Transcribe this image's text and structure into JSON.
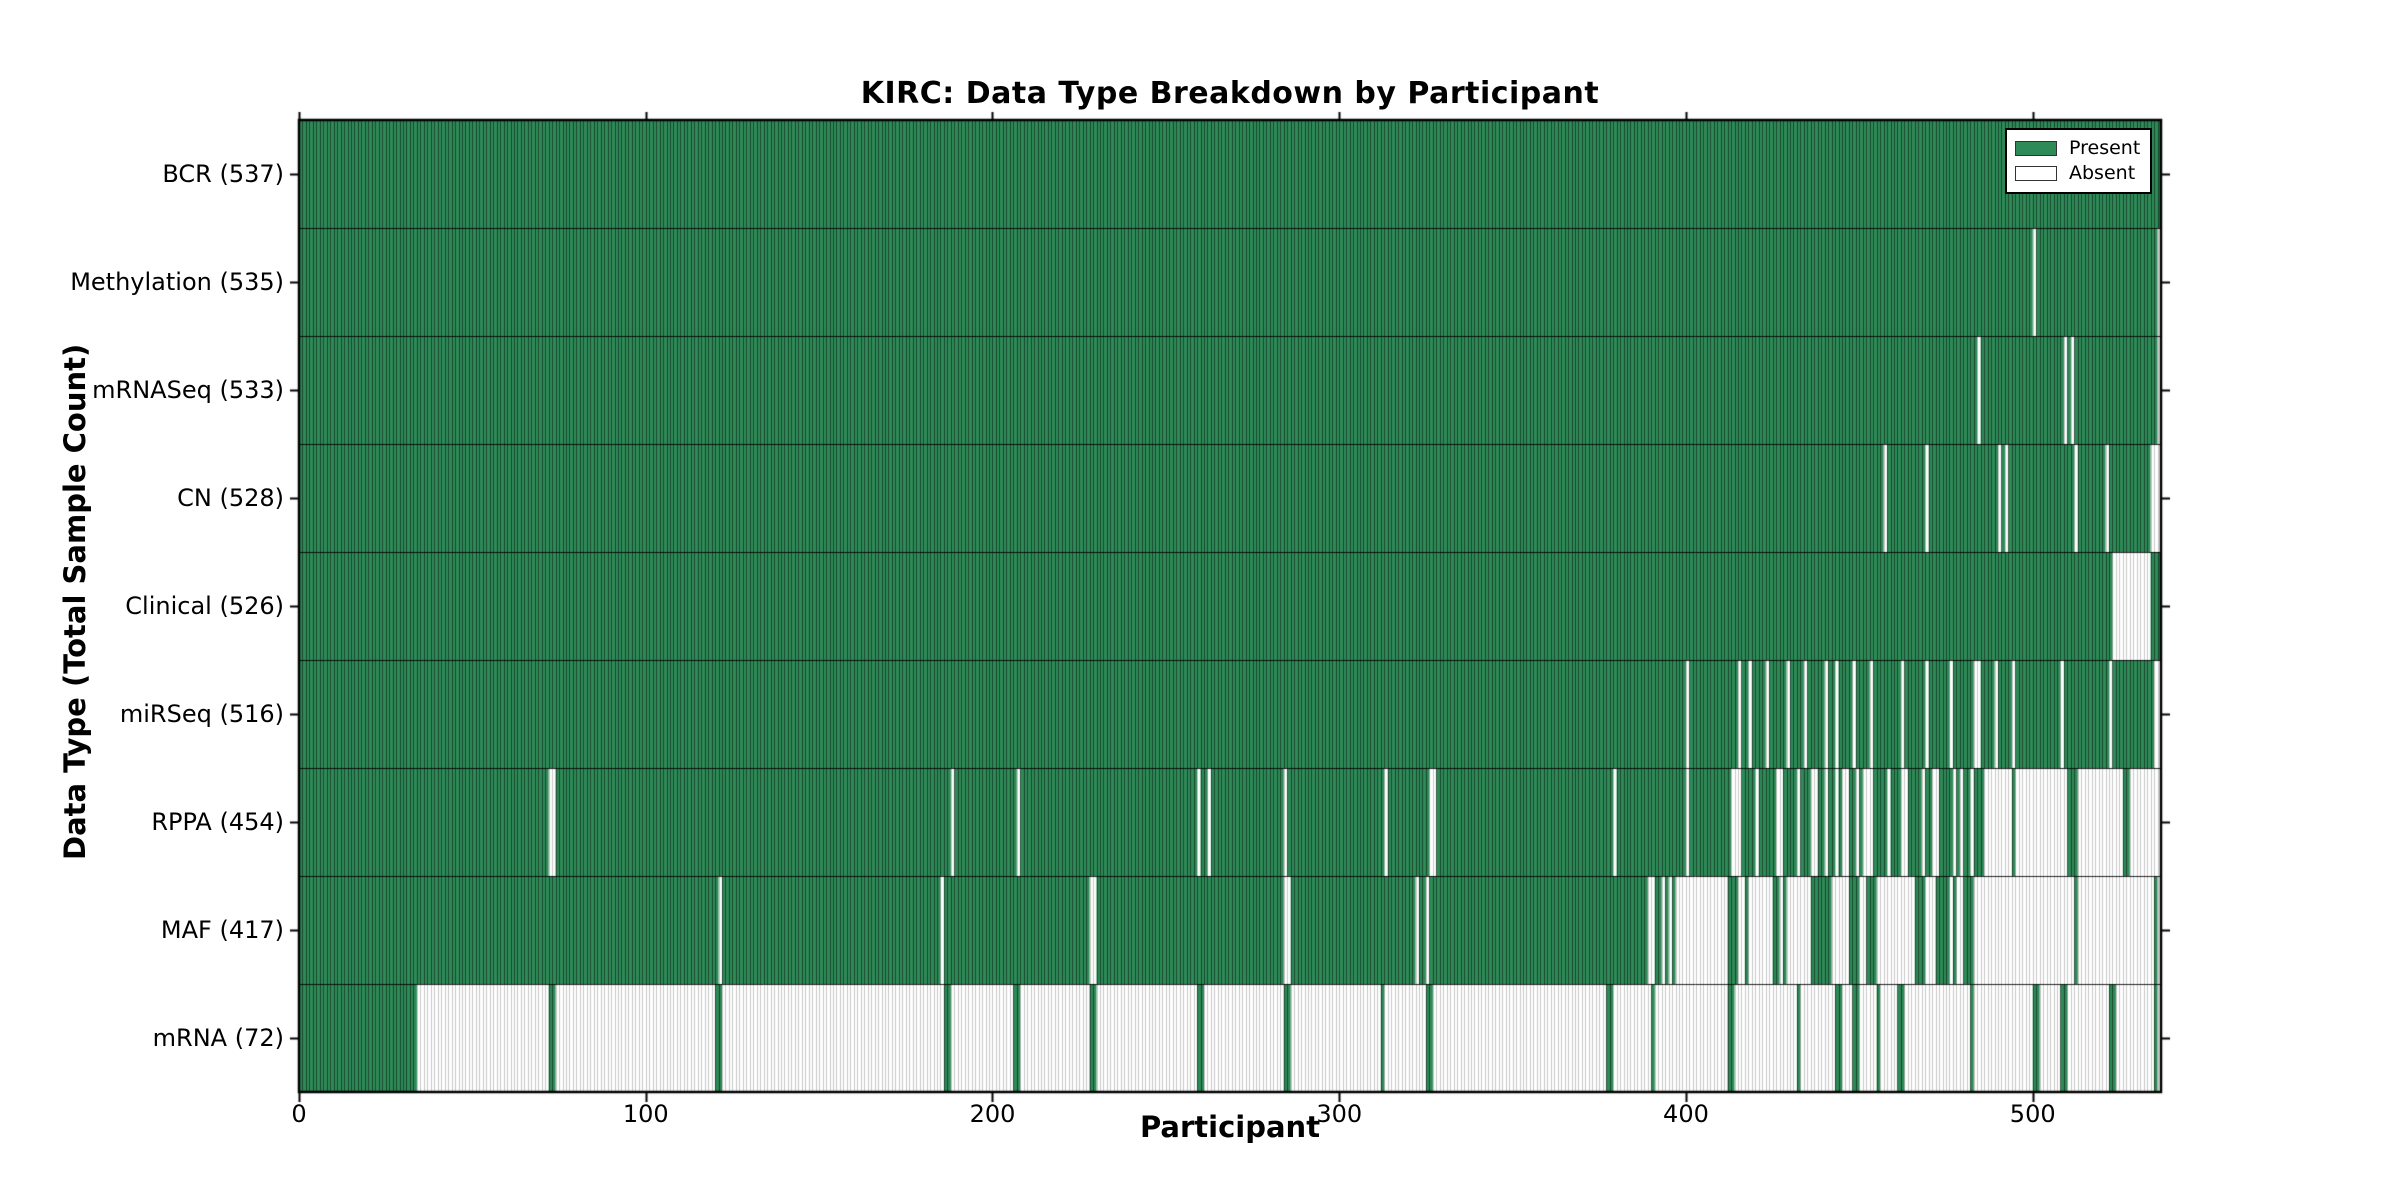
{
  "chart_data": {
    "type": "heatmap",
    "title": "KIRC: Data Type Breakdown by Participant",
    "xlabel": "Participant",
    "ylabel": "Data Type (Total Sample Count)",
    "x_ticks": [
      0,
      100,
      200,
      300,
      400,
      500
    ],
    "n_participants": 537,
    "grid": false,
    "legend_position": "upper right",
    "legend": [
      {
        "label": "Present",
        "color": "#2E8B57"
      },
      {
        "label": "Absent",
        "color": "#FFFFFF"
      }
    ],
    "colors": {
      "present": "#2E8B57",
      "absent": "#FFFFFF",
      "present_edge": "rgba(0,0,0,0.50)",
      "absent_edge": "rgba(0,0,0,0.22)",
      "row_divider": "rgba(0,0,0,0.85)",
      "axis": "#000000"
    },
    "rows": [
      {
        "label": "BCR",
        "total": 537,
        "absent": []
      },
      {
        "label": "Methylation",
        "total": 535,
        "absent": [
          500,
          536
        ]
      },
      {
        "label": "mRNASeq",
        "total": 533,
        "absent": [
          484,
          509,
          511,
          536
        ]
      },
      {
        "label": "CN",
        "total": 528,
        "absent": [
          457,
          469,
          490,
          492,
          512,
          521,
          "534-536"
        ]
      },
      {
        "label": "Clinical",
        "total": 526,
        "absent": [
          "523-533"
        ]
      },
      {
        "label": "miRSeq",
        "total": 516,
        "absent": [
          400,
          415,
          418,
          423,
          429,
          434,
          440,
          443,
          448,
          453,
          462,
          469,
          476,
          "483-484",
          489,
          494,
          508,
          522,
          "535-536"
        ]
      },
      {
        "label": "RPPA",
        "total": 454,
        "absent": [
          "72-73",
          188,
          207,
          259,
          262,
          284,
          313,
          "326-327",
          379,
          400,
          "413-415",
          420,
          "426-427",
          432,
          "436-437",
          440,
          443,
          "445-446",
          449,
          "451-453",
          458,
          "462-463",
          468,
          "471-472",
          477,
          479,
          482,
          "486-493",
          "495-509",
          "513-525",
          "528-536"
        ]
      },
      {
        "label": "MAF",
        "total": 417,
        "absent": [
          121,
          185,
          "228-229",
          "284-285",
          322,
          325,
          "389-390",
          393,
          395,
          "397-411",
          415,
          416,
          "418-424",
          427,
          "429-435",
          "442-446",
          450,
          451,
          "455-465",
          "469-471",
          476,
          "478-479",
          "483-511",
          "513-534",
          536
        ]
      },
      {
        "label": "mRNA",
        "total": 72,
        "present": [
          "0-33",
          "72-73",
          "120-121",
          "186-187",
          "206-207",
          "228-229",
          "259-260",
          "284-285",
          312,
          "325-326",
          "377-378",
          390,
          "412-413",
          432,
          "443-444",
          "448-449",
          455,
          "461-462",
          482,
          "500-501",
          "508-509",
          "522-523",
          535
        ]
      }
    ]
  }
}
